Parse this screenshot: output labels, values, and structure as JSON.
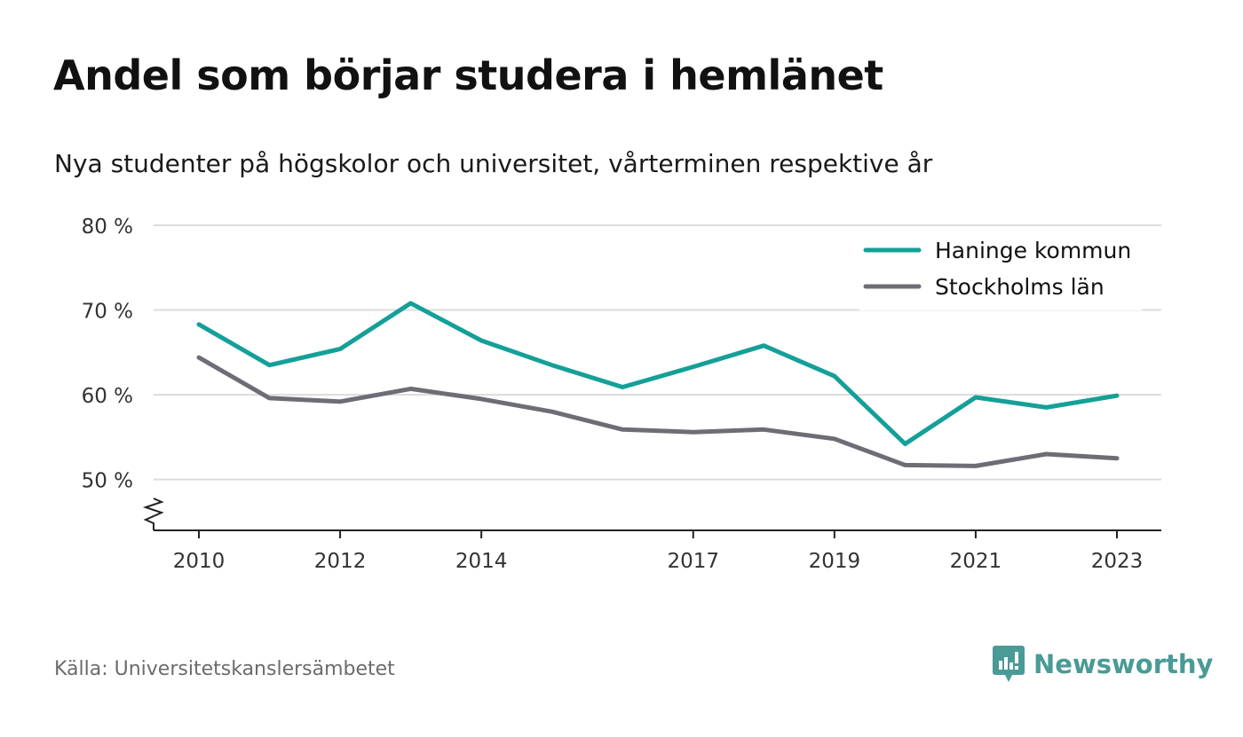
{
  "title": "Andel som börjar studera i hemlänet",
  "subtitle": "Nya studenter på högskolor och universitet, vårterminen respektive år",
  "source": "Källa: Universitetskanslersämbetet",
  "brand": {
    "name": "Newsworthy",
    "icon": "newsworthy-logo-icon",
    "color": "#4a9a95"
  },
  "chart_data": {
    "type": "line",
    "x": [
      2010,
      2011,
      2012,
      2013,
      2014,
      2015,
      2016,
      2017,
      2018,
      2019,
      2020,
      2021,
      2022,
      2023
    ],
    "x_ticks": [
      2010,
      2012,
      2014,
      2017,
      2019,
      2021,
      2023
    ],
    "y_ticks": [
      50,
      60,
      70,
      80
    ],
    "y_tick_labels": [
      "50 %",
      "60 %",
      "70 %",
      "80 %"
    ],
    "ylim": [
      44,
      80
    ],
    "y_axis_break": true,
    "grid": true,
    "legend_position": "top-right",
    "series": [
      {
        "name": "Haninge kommun",
        "color": "#14a098",
        "values": [
          68.3,
          63.5,
          65.4,
          70.8,
          66.4,
          63.5,
          60.9,
          63.3,
          65.8,
          62.2,
          54.2,
          59.7,
          58.5,
          59.9
        ]
      },
      {
        "name": "Stockholms län",
        "color": "#6e6d75",
        "values": [
          64.4,
          59.6,
          59.2,
          60.7,
          59.5,
          58.0,
          55.9,
          55.6,
          55.9,
          54.8,
          51.7,
          51.6,
          53.0,
          52.5
        ]
      }
    ]
  }
}
